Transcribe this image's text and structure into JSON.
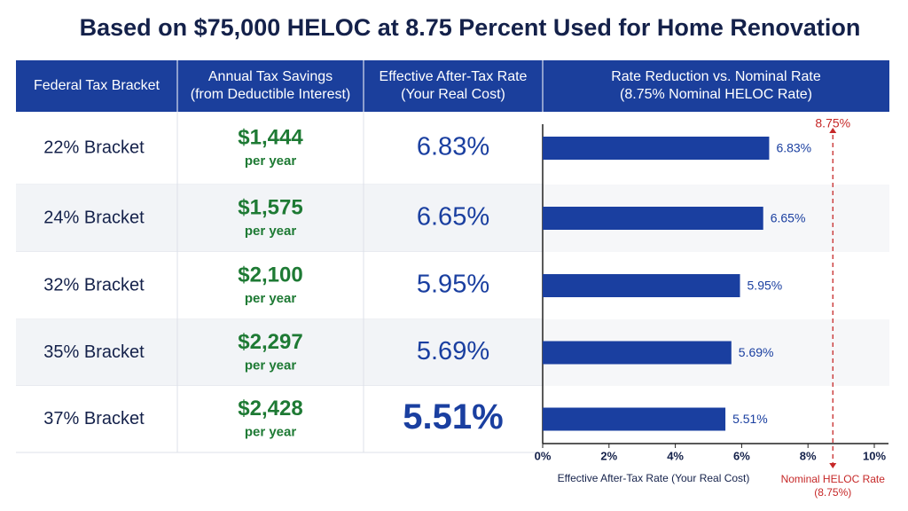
{
  "title": "Based on $75,000 HELOC at 8.75 Percent Used for Home Renovation",
  "table": {
    "header": [
      [
        "Federal Tax Bracket"
      ],
      [
        "Annual Tax Savings",
        "(from Deductible Interest)"
      ],
      [
        "Effective After-Tax Rate",
        "(Your Real Cost)"
      ],
      [
        "Rate Reduction vs. Nominal Rate",
        "(8.75% Nominal HELOC Rate)"
      ]
    ],
    "rows": [
      {
        "bracket": "22% Bracket",
        "savings": "$1,444",
        "period": "per year",
        "rate": "6.83%"
      },
      {
        "bracket": "24% Bracket",
        "savings": "$1,575",
        "period": "per year",
        "rate": "6.65%"
      },
      {
        "bracket": "32% Bracket",
        "savings": "$2,100",
        "period": "per year",
        "rate": "5.95%"
      },
      {
        "bracket": "35% Bracket",
        "savings": "$2,297",
        "period": "per year",
        "rate": "5.69%"
      },
      {
        "bracket": "37% Bracket",
        "savings": "$2,428",
        "period": "per year",
        "rate": "5.51%"
      }
    ]
  },
  "chart_data": {
    "type": "bar",
    "orientation": "horizontal",
    "values": [
      6.83,
      6.65,
      5.95,
      5.69,
      5.51
    ],
    "value_labels": [
      "6.83%",
      "6.65%",
      "5.95%",
      "5.69%",
      "5.51%"
    ],
    "color": "#1a3fa0",
    "xlim": [
      0,
      10
    ],
    "xticks": [
      {
        "value": 0,
        "label": "0%"
      },
      {
        "value": 2,
        "label": "2%"
      },
      {
        "value": 4,
        "label": "4%"
      },
      {
        "value": 6,
        "label": "6%"
      },
      {
        "value": 8,
        "label": "8%"
      },
      {
        "value": 10,
        "label": "10%"
      }
    ],
    "xlabel": "Effective After-Tax Rate (Your Real Cost)",
    "reference": {
      "value": 8.75,
      "label": "8.75%",
      "note": [
        "Nominal HELOC Rate",
        "(8.75%)"
      ],
      "color": "#c62828"
    }
  }
}
